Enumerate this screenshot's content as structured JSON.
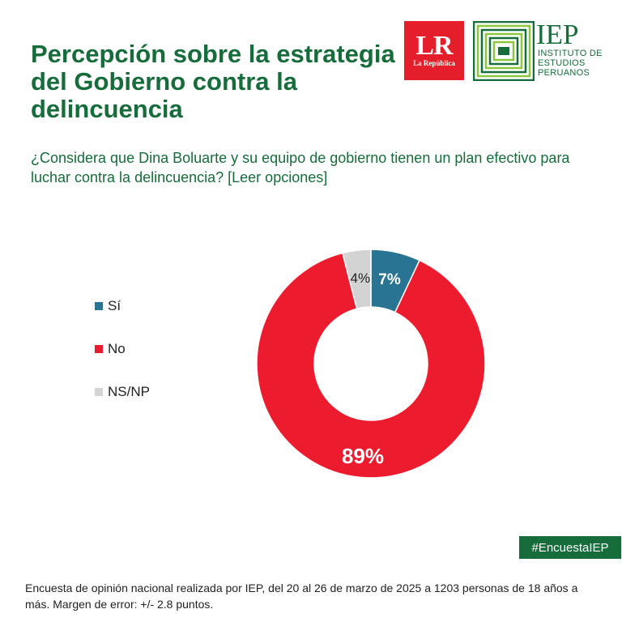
{
  "title": "Percepción sobre la estrategia del Gobierno contra la delincuencia",
  "question": "¿Considera que Dina Boluarte y su equipo de gobierno tienen un plan efectivo para luchar contra la delincuencia? [Leer opciones]",
  "logos": {
    "lr_main": "LR",
    "lr_sub": "La República",
    "iep_main": "IEP",
    "iep_sub": "INSTITUTO DE ESTUDIOS PERUANOS"
  },
  "hashtag": "#EncuestaIEP",
  "footer": "Encuesta de opinión nacional realizada por IEP, del 20 al 26 de marzo de 2025 a 1203 personas de 18 años a más. Margen de error: +/- 2.8 puntos.",
  "colors": {
    "title_green": "#166c3a",
    "si": "#2a7493",
    "no": "#ec1c2e",
    "nsnp": "#d3d3d3"
  },
  "chart_data": {
    "type": "pie",
    "variant": "donut",
    "legend_position": "left",
    "series": [
      {
        "name": "Sí",
        "value": 7,
        "label": "7%",
        "color": "#2a7493"
      },
      {
        "name": "No",
        "value": 89,
        "label": "89%",
        "color": "#ec1c2e"
      },
      {
        "name": "NS/NP",
        "value": 4,
        "label": "4%",
        "color": "#d3d3d3"
      }
    ]
  }
}
